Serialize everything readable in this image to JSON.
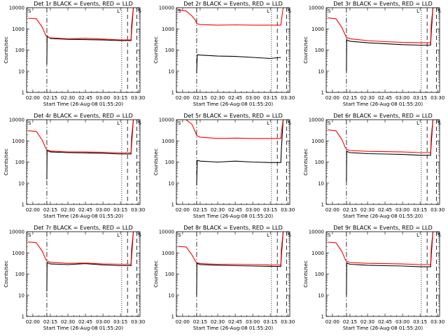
{
  "colors": {
    "events": "#000000",
    "lld": "#ff0000",
    "axes": "#000000",
    "background": "#ffffff"
  },
  "chart_data": [
    {
      "type": "line",
      "title": "Det 1r BLACK = Events, RED = LLD",
      "xlabel": "Start Time (26-Aug-08 01:55:20)",
      "ylabel": "Counts/sec",
      "y_scale": "log",
      "ylim": [
        1,
        10000
      ],
      "x_ticks": [
        "02:00",
        "02:15",
        "02:30",
        "02:45",
        "03:00",
        "03:15",
        "03:30"
      ],
      "y_ticks": [
        "1",
        "10",
        "100",
        "1000",
        "10000"
      ],
      "x_minutes_per_tick": 15,
      "corner_marks": [
        "S",
        "L",
        "S"
      ],
      "series": [
        {
          "name": "Events",
          "color": "#000000",
          "x": [
            12,
            12.2,
            15,
            30,
            45,
            60,
            75,
            84,
            84.5,
            86,
            88
          ],
          "y": [
            20,
            450,
            350,
            320,
            310,
            300,
            280,
            280,
            800,
            10000,
            10000
          ]
        },
        {
          "name": "LLD",
          "color": "#ff0000",
          "x": [
            -4,
            3,
            8,
            11,
            12,
            15,
            30,
            45,
            60,
            75,
            84,
            84.5,
            86,
            88
          ],
          "y": [
            3200,
            3000,
            1200,
            500,
            420,
            380,
            340,
            360,
            330,
            300,
            300,
            1500,
            10000,
            10000
          ]
        }
      ],
      "vlines": [
        {
          "x": 12,
          "style": "dash-dot"
        },
        {
          "x": 76,
          "style": "dotted"
        },
        {
          "x": 81,
          "style": "dashed"
        },
        {
          "x": 89,
          "style": "dashed"
        }
      ]
    },
    {
      "type": "line",
      "title": "Det 2r BLACK = Events, RED = LLD",
      "xlabel": "Start Time (26-Aug-08 01:55:20)",
      "ylabel": "Counts/sec",
      "y_scale": "log",
      "ylim": [
        1,
        10000
      ],
      "x_ticks": [
        "02:00",
        "02:15",
        "02:30",
        "02:45",
        "03:00",
        "03:15",
        "03:30"
      ],
      "y_ticks": [
        "1",
        "10",
        "100",
        "1000",
        "10000"
      ],
      "x_minutes_per_tick": 15,
      "corner_marks": [
        "S",
        "L",
        "S"
      ],
      "series": [
        {
          "name": "Events",
          "color": "#000000",
          "x": [
            12,
            12.5,
            15,
            30,
            45,
            60,
            75,
            84
          ],
          "y": [
            8,
            60,
            58,
            52,
            50,
            45,
            40,
            45
          ]
        },
        {
          "name": "LLD",
          "color": "#ff0000",
          "x": [
            -4,
            3,
            8,
            11,
            12,
            15,
            30,
            45,
            60,
            75,
            84,
            84.5,
            86,
            88
          ],
          "y": [
            8000,
            7000,
            4000,
            2500,
            1800,
            1600,
            1500,
            1550,
            1500,
            1500,
            1500,
            2500,
            10000,
            10000
          ]
        }
      ],
      "vlines": [
        {
          "x": 12,
          "style": "dash-dot"
        },
        {
          "x": 76,
          "style": "dotted"
        },
        {
          "x": 81,
          "style": "dashed"
        },
        {
          "x": 89,
          "style": "dashed"
        }
      ]
    },
    {
      "type": "line",
      "title": "Det 3r BLACK = Events, RED = LLD",
      "xlabel": "Start Time (26-Aug-08 01:55:20)",
      "ylabel": "Counts/sec",
      "y_scale": "log",
      "ylim": [
        1,
        10000
      ],
      "x_ticks": [
        "02:00",
        "02:15",
        "02:30",
        "02:45",
        "03:00",
        "03:15",
        "03:30"
      ],
      "y_ticks": [
        "1",
        "10",
        "100",
        "1000",
        "10000"
      ],
      "x_minutes_per_tick": 15,
      "corner_marks": [
        "S",
        "L",
        "S"
      ],
      "series": [
        {
          "name": "Events",
          "color": "#000000",
          "x": [
            12,
            12.2,
            15,
            30,
            45,
            60,
            75,
            84,
            84.5,
            86,
            88
          ],
          "y": [
            10,
            300,
            260,
            220,
            200,
            180,
            170,
            170,
            600,
            10000,
            10000
          ]
        },
        {
          "name": "LLD",
          "color": "#ff0000",
          "x": [
            -4,
            3,
            8,
            11,
            12,
            15,
            30,
            45,
            60,
            75,
            84,
            84.5,
            86,
            88
          ],
          "y": [
            3300,
            3000,
            1200,
            500,
            400,
            340,
            280,
            250,
            230,
            220,
            220,
            1500,
            10000,
            10000
          ]
        }
      ],
      "vlines": [
        {
          "x": 12,
          "style": "dash-dot"
        },
        {
          "x": 76,
          "style": "dotted"
        },
        {
          "x": 81,
          "style": "dashed"
        },
        {
          "x": 89,
          "style": "dashed"
        }
      ]
    },
    {
      "type": "line",
      "title": "Det 4r BLACK = Events, RED = LLD",
      "xlabel": "Start Time (26-Aug-08 01:55:20)",
      "ylabel": "Counts/sec",
      "y_scale": "log",
      "ylim": [
        1,
        10000
      ],
      "x_ticks": [
        "02:00",
        "02:15",
        "02:30",
        "02:45",
        "03:00",
        "03:15",
        "03:30"
      ],
      "y_ticks": [
        "1",
        "10",
        "100",
        "1000",
        "10000"
      ],
      "x_minutes_per_tick": 15,
      "corner_marks": [
        "S",
        "L",
        "S"
      ],
      "series": [
        {
          "name": "Events",
          "color": "#000000",
          "x": [
            12,
            12.2,
            15,
            30,
            45,
            60,
            75,
            84,
            84.5,
            86,
            88
          ],
          "y": [
            15,
            350,
            300,
            280,
            270,
            260,
            240,
            240,
            700,
            10000,
            10000
          ]
        },
        {
          "name": "LLD",
          "color": "#ff0000",
          "x": [
            -4,
            3,
            8,
            11,
            12,
            15,
            30,
            45,
            60,
            75,
            84,
            84.5,
            86,
            88
          ],
          "y": [
            3000,
            2800,
            1100,
            450,
            380,
            330,
            300,
            300,
            290,
            270,
            270,
            1500,
            10000,
            10000
          ]
        }
      ],
      "vlines": [
        {
          "x": 12,
          "style": "dash-dot"
        },
        {
          "x": 76,
          "style": "dotted"
        },
        {
          "x": 81,
          "style": "dashed"
        },
        {
          "x": 89,
          "style": "dashed"
        }
      ]
    },
    {
      "type": "line",
      "title": "Det 5r BLACK = Events, RED = LLD",
      "xlabel": "Start Time (26-Aug-08 01:55:20)",
      "ylabel": "Counts/sec",
      "y_scale": "log",
      "ylim": [
        1,
        10000
      ],
      "x_ticks": [
        "02:00",
        "02:15",
        "02:30",
        "02:45",
        "03:00",
        "03:15",
        "03:30"
      ],
      "y_ticks": [
        "1",
        "10",
        "100",
        "1000",
        "10000"
      ],
      "x_minutes_per_tick": 15,
      "corner_marks": [
        "S",
        "L",
        "S"
      ],
      "series": [
        {
          "name": "Events",
          "color": "#000000",
          "x": [
            12,
            12.5,
            15,
            30,
            45,
            60,
            75,
            84,
            84.5,
            86,
            88
          ],
          "y": [
            8,
            120,
            110,
            100,
            110,
            100,
            95,
            95,
            400,
            10000,
            10000
          ]
        },
        {
          "name": "LLD",
          "color": "#ff0000",
          "x": [
            -4,
            3,
            8,
            11,
            12,
            15,
            30,
            45,
            60,
            75,
            84,
            84.5,
            86,
            88
          ],
          "y": [
            10000,
            10000,
            6000,
            2500,
            1800,
            1500,
            1300,
            1350,
            1300,
            1300,
            1300,
            2500,
            10000,
            10000
          ]
        }
      ],
      "vlines": [
        {
          "x": 12,
          "style": "dash-dot"
        },
        {
          "x": 76,
          "style": "dotted"
        },
        {
          "x": 81,
          "style": "dashed"
        },
        {
          "x": 89,
          "style": "dashed"
        }
      ]
    },
    {
      "type": "line",
      "title": "Det 6r BLACK = Events, RED = LLD",
      "xlabel": "Start Time (26-Aug-08 01:55:20)",
      "ylabel": "Counts/sec",
      "y_scale": "log",
      "ylim": [
        1,
        10000
      ],
      "x_ticks": [
        "02:00",
        "02:15",
        "02:30",
        "02:45",
        "03:00",
        "03:15",
        "03:30"
      ],
      "y_ticks": [
        "1",
        "10",
        "100",
        "1000",
        "10000"
      ],
      "x_minutes_per_tick": 15,
      "corner_marks": [
        "S",
        "L",
        "S"
      ],
      "series": [
        {
          "name": "Events",
          "color": "#000000",
          "x": [
            12,
            12.2,
            15,
            30,
            45,
            60,
            75,
            84,
            84.5,
            86,
            88
          ],
          "y": [
            12,
            320,
            280,
            250,
            240,
            230,
            210,
            210,
            700,
            10000,
            10000
          ]
        },
        {
          "name": "LLD",
          "color": "#ff0000",
          "x": [
            -4,
            3,
            8,
            11,
            12,
            15,
            30,
            45,
            60,
            75,
            84,
            84.5,
            86,
            88
          ],
          "y": [
            3300,
            3000,
            1200,
            480,
            400,
            350,
            320,
            310,
            300,
            280,
            280,
            1500,
            10000,
            10000
          ]
        }
      ],
      "vlines": [
        {
          "x": 12,
          "style": "dash-dot"
        },
        {
          "x": 76,
          "style": "dotted"
        },
        {
          "x": 81,
          "style": "dashed"
        },
        {
          "x": 89,
          "style": "dashed"
        }
      ]
    },
    {
      "type": "line",
      "title": "Det 7r BLACK = Events, RED = LLD",
      "xlabel": "Start Time (26-Aug-08 01:55:20)",
      "ylabel": "Counts/sec",
      "y_scale": "log",
      "ylim": [
        1,
        10000
      ],
      "x_ticks": [
        "02:00",
        "02:15",
        "02:30",
        "02:45",
        "03:00",
        "03:15",
        "03:30"
      ],
      "y_ticks": [
        "1",
        "10",
        "100",
        "1000",
        "10000"
      ],
      "x_minutes_per_tick": 15,
      "corner_marks": [
        "S",
        "L",
        "S"
      ],
      "series": [
        {
          "name": "Events",
          "color": "#000000",
          "x": [
            12,
            12.2,
            15,
            30,
            45,
            60,
            75,
            84,
            84.5,
            86,
            88
          ],
          "y": [
            15,
            350,
            300,
            280,
            310,
            270,
            250,
            250,
            700,
            10000,
            10000
          ]
        },
        {
          "name": "LLD",
          "color": "#ff0000",
          "x": [
            -4,
            3,
            8,
            11,
            12,
            15,
            30,
            45,
            60,
            75,
            84,
            84.5,
            86,
            88
          ],
          "y": [
            3300,
            3000,
            1200,
            500,
            420,
            360,
            320,
            330,
            300,
            290,
            290,
            1500,
            10000,
            10000
          ]
        }
      ],
      "vlines": [
        {
          "x": 12,
          "style": "dash-dot"
        },
        {
          "x": 76,
          "style": "dotted"
        },
        {
          "x": 81,
          "style": "dashed"
        },
        {
          "x": 89,
          "style": "dashed"
        }
      ]
    },
    {
      "type": "line",
      "title": "Det 8r BLACK = Events, RED = LLD",
      "xlabel": "Start Time (26-Aug-08 01:55:20)",
      "ylabel": "Counts/sec",
      "y_scale": "log",
      "ylim": [
        1,
        10000
      ],
      "x_ticks": [
        "02:00",
        "02:15",
        "02:30",
        "02:45",
        "03:00",
        "03:15",
        "03:30"
      ],
      "y_ticks": [
        "1",
        "10",
        "100",
        "1000",
        "10000"
      ],
      "x_minutes_per_tick": 15,
      "corner_marks": [
        "S",
        "L",
        "S"
      ],
      "series": [
        {
          "name": "Events",
          "color": "#000000",
          "x": [
            12,
            12.2,
            15,
            30,
            45,
            60,
            75,
            84,
            84.5,
            86,
            88
          ],
          "y": [
            10,
            320,
            280,
            260,
            250,
            240,
            230,
            230,
            700,
            10000,
            10000
          ]
        },
        {
          "name": "LLD",
          "color": "#ff0000",
          "x": [
            -4,
            3,
            8,
            11,
            12,
            15,
            30,
            45,
            60,
            75,
            84,
            84.5,
            86,
            88
          ],
          "y": [
            2000,
            1900,
            800,
            400,
            350,
            310,
            290,
            290,
            280,
            270,
            270,
            1500,
            10000,
            10000
          ]
        }
      ],
      "vlines": [
        {
          "x": 12,
          "style": "dash-dot"
        },
        {
          "x": 76,
          "style": "dotted"
        },
        {
          "x": 81,
          "style": "dashed"
        },
        {
          "x": 89,
          "style": "dashed"
        }
      ]
    },
    {
      "type": "line",
      "title": "Det 9r BLACK = Events, RED = LLD",
      "xlabel": "Start Time (26-Aug-08 01:55:20)",
      "ylabel": "Counts/sec",
      "y_scale": "log",
      "ylim": [
        1,
        10000
      ],
      "x_ticks": [
        "02:00",
        "02:15",
        "02:30",
        "02:45",
        "03:00",
        "03:15",
        "03:30"
      ],
      "y_ticks": [
        "1",
        "10",
        "100",
        "1000",
        "10000"
      ],
      "x_minutes_per_tick": 15,
      "corner_marks": [
        "S",
        "L",
        "S"
      ],
      "series": [
        {
          "name": "Events",
          "color": "#000000",
          "x": [
            12,
            12.2,
            15,
            30,
            45,
            60,
            75,
            84,
            84.5,
            86,
            88
          ],
          "y": [
            10,
            330,
            290,
            260,
            250,
            240,
            220,
            220,
            700,
            10000,
            10000
          ]
        },
        {
          "name": "LLD",
          "color": "#ff0000",
          "x": [
            -4,
            3,
            8,
            11,
            12,
            15,
            30,
            45,
            60,
            75,
            84,
            84.5,
            86,
            88
          ],
          "y": [
            3200,
            3000,
            1200,
            480,
            400,
            350,
            320,
            310,
            300,
            280,
            280,
            1500,
            10000,
            10000
          ]
        }
      ],
      "vlines": [
        {
          "x": 12,
          "style": "dash-dot"
        },
        {
          "x": 76,
          "style": "dotted"
        },
        {
          "x": 81,
          "style": "dashed"
        },
        {
          "x": 89,
          "style": "dashed"
        }
      ]
    }
  ]
}
